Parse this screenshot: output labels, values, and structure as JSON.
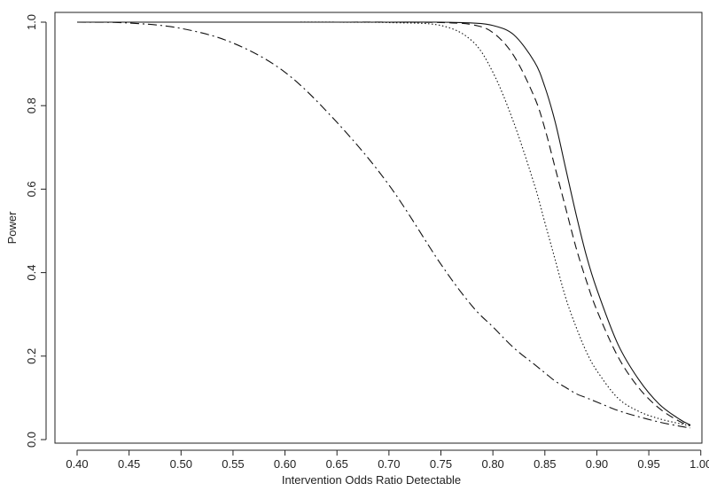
{
  "chart_data": {
    "type": "line",
    "title": "",
    "xlabel": "Intervention Odds Ratio Detectable",
    "ylabel": "Power",
    "xlim": [
      0.4,
      0.99
    ],
    "ylim": [
      0.0,
      1.0
    ],
    "grid": false,
    "legend": "none",
    "xticks": [
      "0.40",
      "0.45",
      "0.50",
      "0.55",
      "0.60",
      "0.65",
      "0.70",
      "0.75",
      "0.80",
      "0.85",
      "0.90",
      "0.95",
      "1.00"
    ],
    "yticks": [
      "0.0",
      "0.2",
      "0.4",
      "0.6",
      "0.8",
      "1.0"
    ],
    "x": [
      0.4,
      0.45,
      0.5,
      0.55,
      0.6,
      0.65,
      0.7,
      0.75,
      0.78,
      0.8,
      0.82,
      0.84,
      0.85,
      0.86,
      0.87,
      0.88,
      0.89,
      0.9,
      0.92,
      0.94,
      0.96,
      0.98,
      0.99
    ],
    "series": [
      {
        "style": "solid",
        "values": [
          1.0,
          1.0,
          1.0,
          1.0,
          1.0,
          1.0,
          1.0,
          1.0,
          0.998,
          0.992,
          0.97,
          0.905,
          0.845,
          0.76,
          0.65,
          0.54,
          0.44,
          0.36,
          0.23,
          0.145,
          0.085,
          0.048,
          0.035
        ]
      },
      {
        "style": "dashed",
        "values": [
          1.0,
          1.0,
          1.0,
          1.0,
          1.0,
          1.0,
          1.0,
          0.999,
          0.994,
          0.975,
          0.92,
          0.82,
          0.745,
          0.65,
          0.555,
          0.46,
          0.38,
          0.31,
          0.2,
          0.125,
          0.075,
          0.043,
          0.034
        ]
      },
      {
        "style": "dotted",
        "values": [
          1.0,
          1.0,
          1.0,
          1.0,
          1.0,
          1.0,
          0.999,
          0.992,
          0.955,
          0.88,
          0.76,
          0.61,
          0.52,
          0.43,
          0.34,
          0.27,
          0.21,
          0.165,
          0.1,
          0.068,
          0.05,
          0.038,
          0.033
        ]
      },
      {
        "style": "dashdot",
        "values": [
          1.0,
          0.998,
          0.985,
          0.95,
          0.88,
          0.76,
          0.61,
          0.42,
          0.32,
          0.27,
          0.22,
          0.18,
          0.16,
          0.14,
          0.125,
          0.11,
          0.1,
          0.09,
          0.07,
          0.055,
          0.042,
          0.032,
          0.028
        ]
      }
    ]
  }
}
